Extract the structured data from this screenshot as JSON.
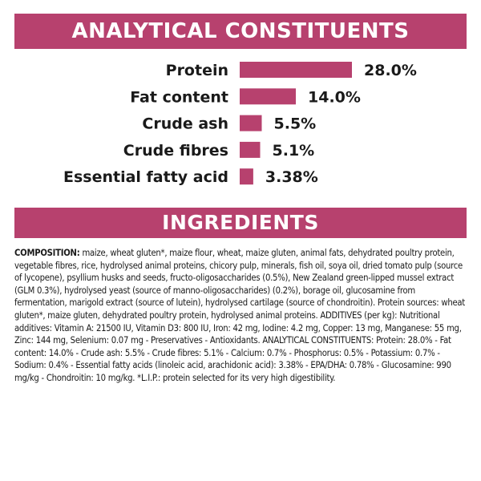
{
  "header": {
    "title": "ANALYTICAL CONSTITUENTS"
  },
  "chart_data": {
    "type": "bar",
    "orientation": "horizontal",
    "categories": [
      "Protein",
      "Fat content",
      "Crude ash",
      "Crude fibres",
      "Essential fatty acid"
    ],
    "values": [
      28.0,
      14.0,
      5.5,
      5.1,
      3.38
    ],
    "value_labels": [
      "28.0%",
      "14.0%",
      "5.5%",
      "5.1%",
      "3.38%"
    ],
    "unit": "%",
    "bar_color": "#b7416e",
    "grid": false,
    "legend": "none"
  },
  "ingredients": {
    "title": "INGREDIENTS",
    "composition_label": "COMPOSITION:",
    "composition_text": " maize, wheat gluten*, maize flour, wheat, maize gluten, animal fats, dehydrated poultry protein, vegetable fibres, rice, hydrolysed animal proteins, chicory pulp, minerals, fish oil, soya oil, dried tomato pulp (source of lycopene), psyllium husks and seeds, fructo-oligosaccharides (0.5%), New Zealand green-lipped mussel extract (GLM 0.3%), hydrolysed yeast (source of manno-oligosaccharides) (0.2%), borage oil, glucosamine from fermentation, marigold extract (source of lutein), hydrolysed cartilage (source of chondroitin). Protein sources: wheat gluten*, maize gluten, dehydrated poultry protein, hydrolysed animal proteins. ADDITIVES (per kg): Nutritional additives: Vitamin A: 21500 IU, Vitamin D3: 800 IU, Iron: 42 mg, Iodine: 4.2 mg, Copper: 13 mg, Manganese: 55 mg, Zinc: 144 mg, Selenium: 0.07 mg - Preservatives - Antioxidants. ANALYTICAL CONSTITUENTS: Protein: 28.0% - Fat content: 14.0% - Crude ash: 5.5% - Crude fibres: 5.1% - Calcium: 0.7% - Phosphorus: 0.5% - Potassium: 0.7% - Sodium: 0.4% - Essential fatty acids (linoleic acid, arachidonic acid): 3.38% - EPA/DHA: 0.78% - Glucosamine: 990 mg/kg - Chondroitin: 10 mg/kg. *L.I.P.: protein selected for its very high digestibility."
  },
  "colors": {
    "accent": "#b7416e",
    "text": "#1a1a1a",
    "background": "#ffffff"
  }
}
